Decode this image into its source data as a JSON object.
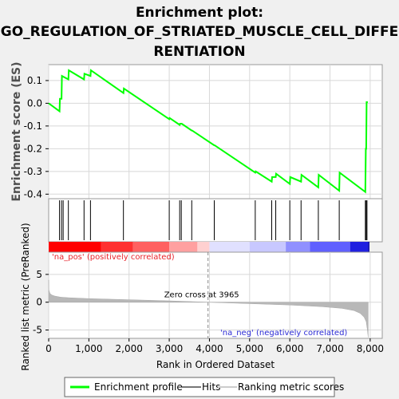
{
  "title_lines": [
    "Enrichment plot:",
    "GO_REGULATION_OF_STRIATED_MUSCLE_CELL_DIFFE",
    "RENTIATION"
  ],
  "chart_data": {
    "type": "line",
    "title": "Enrichment plot: GO_REGULATION_OF_STRIATED_MUSCLE_CELL_DIFFERENTIATION",
    "es_panel": {
      "ylabel": "Enrichment score (ES)",
      "ylim": [
        -0.42,
        0.17
      ],
      "yticks": [
        0.1,
        0.0,
        -0.1,
        -0.2,
        -0.3,
        -0.4
      ],
      "ytick_labels": [
        "0.1",
        "0.0",
        "-0.1",
        "-0.2",
        "-0.3",
        "-0.4"
      ],
      "grid": true,
      "series": [
        {
          "name": "Enrichment profile",
          "color": "#00ff00",
          "x": [
            0,
            270,
            280,
            320,
            330,
            490,
            500,
            880,
            890,
            1040,
            1050,
            1860,
            1870,
            3000,
            3010,
            3260,
            3270,
            3300,
            3310,
            3560,
            3570,
            4120,
            4130,
            5140,
            5150,
            5550,
            5560,
            5650,
            5660,
            6000,
            6010,
            6280,
            6290,
            6710,
            6720,
            7230,
            7240,
            7880,
            7890,
            7900,
            7910,
            7940
          ],
          "y": [
            0.0,
            -0.035,
            0.02,
            0.02,
            0.12,
            0.105,
            0.145,
            0.105,
            0.13,
            0.12,
            0.145,
            0.045,
            0.065,
            -0.07,
            -0.065,
            -0.095,
            -0.09,
            -0.09,
            -0.09,
            -0.12,
            -0.12,
            -0.185,
            -0.185,
            -0.305,
            -0.3,
            -0.345,
            -0.325,
            -0.325,
            -0.31,
            -0.355,
            -0.325,
            -0.345,
            -0.315,
            -0.37,
            -0.315,
            -0.385,
            -0.305,
            -0.39,
            -0.2,
            -0.2,
            0.005,
            0.005
          ]
        }
      ]
    },
    "hits": [
      270,
      320,
      360,
      490,
      880,
      1040,
      1860,
      3000,
      3260,
      3300,
      3560,
      4120,
      5140,
      5550,
      5650,
      6000,
      6280,
      6710,
      7230,
      7880,
      7900,
      7920
    ],
    "rank_panel": {
      "ylabel": "Ranked list metric (PreRanked)",
      "ylim": [
        -6.5,
        9
      ],
      "yticks": [
        5,
        0,
        -5
      ],
      "ytick_labels": [
        "5",
        "0",
        "-5"
      ],
      "pos_label": "'na_pos' (positively correlated)",
      "neg_label": "'na_neg' (negatively correlated)",
      "zero_cross_label": "Zero cross at 3965",
      "zero_cross": 3965,
      "metric_profile": {
        "x": [
          0,
          5,
          30,
          80,
          150,
          300,
          500,
          1000,
          2000,
          3000,
          3965,
          5000,
          6000,
          6800,
          7300,
          7600,
          7750,
          7850,
          7900,
          7930,
          7950
        ],
        "y": [
          4.0,
          2.2,
          1.6,
          1.3,
          1.1,
          0.9,
          0.8,
          0.65,
          0.45,
          0.25,
          0.0,
          -0.25,
          -0.5,
          -0.8,
          -1.1,
          -1.5,
          -2.0,
          -2.7,
          -3.5,
          -5.0,
          -6.3
        ]
      }
    },
    "xaxis": {
      "label": "Rank in Ordered Dataset",
      "xlim": [
        0,
        8300
      ],
      "ticks": [
        0,
        1000,
        2000,
        3000,
        4000,
        5000,
        6000,
        7000,
        8000
      ],
      "tick_labels": [
        "0",
        "1,000",
        "2,000",
        "3,000",
        "4,000",
        "5,000",
        "6,000",
        "7,000",
        "8,000"
      ]
    },
    "colorbar": {
      "stops": [
        {
          "x": 0,
          "color": "#ff0000"
        },
        {
          "x": 1300,
          "color": "#ff3030"
        },
        {
          "x": 2100,
          "color": "#ff6060"
        },
        {
          "x": 3000,
          "color": "#ffa0a0"
        },
        {
          "x": 3700,
          "color": "#ffd0d0"
        },
        {
          "x": 4000,
          "color": "#e0e0ff"
        },
        {
          "x": 5000,
          "color": "#c8c8ff"
        },
        {
          "x": 5900,
          "color": "#9090ff"
        },
        {
          "x": 6500,
          "color": "#6060ff"
        },
        {
          "x": 7500,
          "color": "#2020e0"
        },
        {
          "x": 7950,
          "color": "#0000a0"
        }
      ]
    },
    "legend": {
      "placement": "bottom",
      "items": [
        {
          "label": "Enrichment profile",
          "kind": "line",
          "color": "#00ff00"
        },
        {
          "label": "Hits",
          "kind": "line",
          "color": "#777777"
        },
        {
          "label": "Ranking metric scores",
          "kind": "line",
          "color": "#cccccc"
        }
      ]
    }
  }
}
